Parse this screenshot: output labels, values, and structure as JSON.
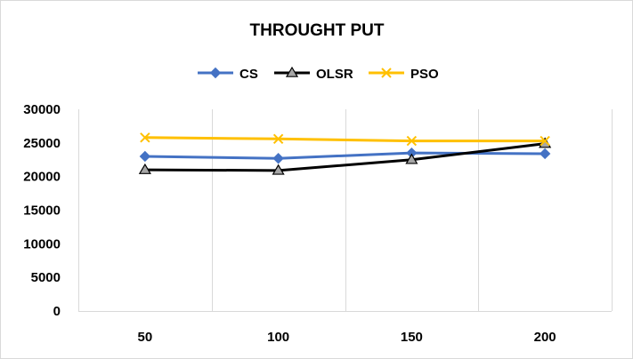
{
  "chart_data": {
    "type": "line",
    "title": "THROUGHT PUT",
    "categories": [
      "50",
      "100",
      "150",
      "200"
    ],
    "ylim": [
      0,
      30000
    ],
    "yticks": [
      0,
      5000,
      10000,
      15000,
      20000,
      25000,
      30000
    ],
    "grid": "vertical",
    "legend_position": "top",
    "series": [
      {
        "name": "CS",
        "values": [
          23000,
          22700,
          23500,
          23400
        ],
        "color": "#4472c4",
        "marker": "diamond-icon"
      },
      {
        "name": "OLSR",
        "values": [
          21000,
          20900,
          22500,
          24900
        ],
        "color": "#000000",
        "marker": "triangle-icon"
      },
      {
        "name": "PSO",
        "values": [
          25800,
          25600,
          25300,
          25300
        ],
        "color": "#ffc000",
        "marker": "x-mark-icon"
      }
    ]
  }
}
